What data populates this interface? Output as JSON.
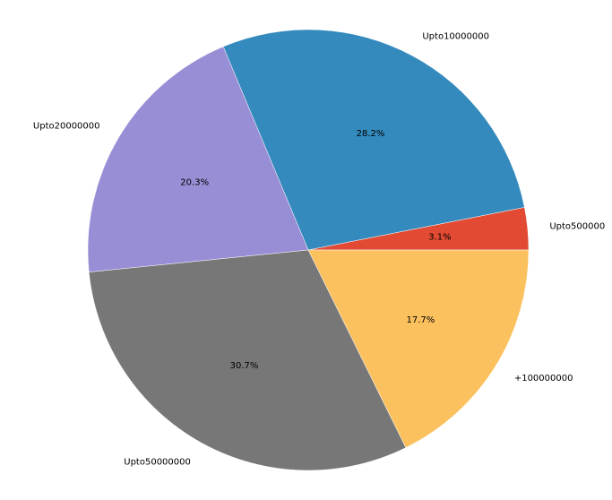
{
  "chart_data": {
    "type": "pie",
    "title": "",
    "slices": [
      {
        "label": "Upto500000",
        "value": 3.1,
        "pct_label": "3.1%",
        "color": "#E24A33"
      },
      {
        "label": "Upto10000000",
        "value": 28.2,
        "pct_label": "28.2%",
        "color": "#348ABD"
      },
      {
        "label": "Upto20000000",
        "value": 20.3,
        "pct_label": "20.3%",
        "color": "#988ED5"
      },
      {
        "label": "Upto50000000",
        "value": 30.7,
        "pct_label": "30.7%",
        "color": "#777777"
      },
      {
        "label": "+100000000",
        "value": 17.7,
        "pct_label": "17.7%",
        "color": "#FBC15E"
      }
    ],
    "start_angle_deg": 0,
    "direction": "counterclockwise",
    "legend": "none"
  }
}
